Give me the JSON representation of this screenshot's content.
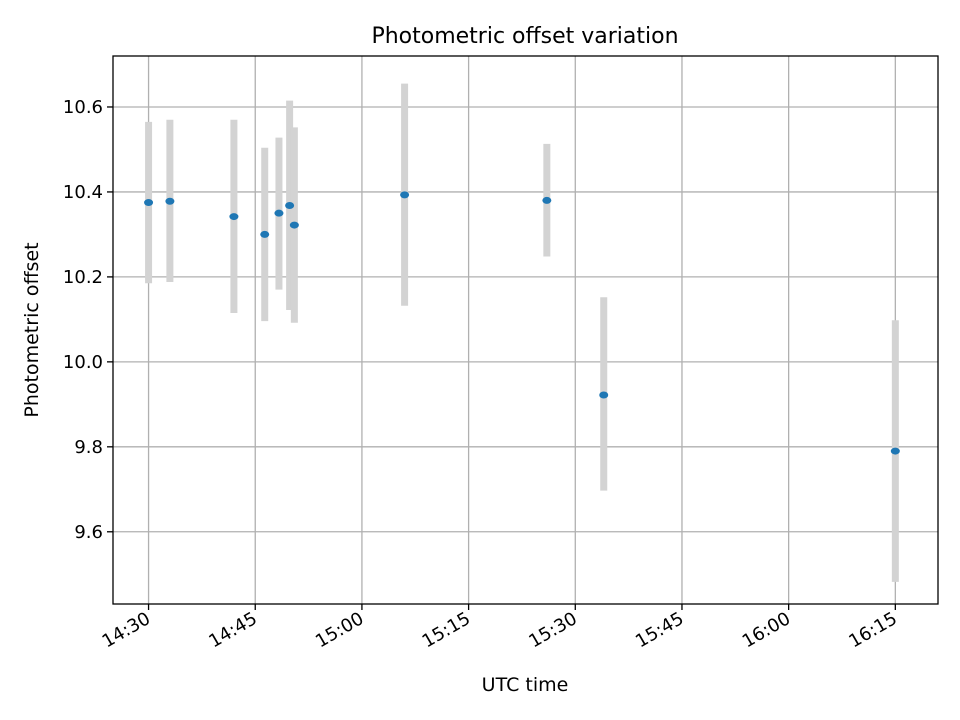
{
  "chart_data": {
    "type": "scatter",
    "title": "Photometric offset variation",
    "xlabel": "UTC time",
    "ylabel": "Photometric offset",
    "x_unit": "time HH:MM",
    "x_ticks": [
      "14:30",
      "14:45",
      "15:00",
      "15:15",
      "15:30",
      "15:45",
      "16:00",
      "16:15"
    ],
    "y_ticks": [
      "9.6",
      "9.8",
      "10.0",
      "10.2",
      "10.4",
      "10.6"
    ],
    "xlim": [
      "14:25",
      "16:21"
    ],
    "ylim": [
      9.43,
      10.72
    ],
    "grid": true,
    "marker_color": "#1f77b4",
    "errorbar_color": "#d3d3d3",
    "points": [
      {
        "x": "14:30",
        "y": 10.375,
        "yerr_low": 10.185,
        "yerr_high": 10.565
      },
      {
        "x": "14:33",
        "y": 10.378,
        "yerr_low": 10.188,
        "yerr_high": 10.57
      },
      {
        "x": "14:42",
        "y": 10.342,
        "yerr_low": 10.115,
        "yerr_high": 10.57
      },
      {
        "x": "14:46:20",
        "y": 10.3,
        "yerr_low": 10.096,
        "yerr_high": 10.504
      },
      {
        "x": "14:48:20",
        "y": 10.35,
        "yerr_low": 10.17,
        "yerr_high": 10.528
      },
      {
        "x": "14:49:50",
        "y": 10.368,
        "yerr_low": 10.122,
        "yerr_high": 10.615
      },
      {
        "x": "14:50:30",
        "y": 10.322,
        "yerr_low": 10.092,
        "yerr_high": 10.552
      },
      {
        "x": "15:06",
        "y": 10.393,
        "yerr_low": 10.132,
        "yerr_high": 10.655
      },
      {
        "x": "15:26",
        "y": 10.38,
        "yerr_low": 10.248,
        "yerr_high": 10.513
      },
      {
        "x": "15:34",
        "y": 9.922,
        "yerr_low": 9.697,
        "yerr_high": 10.152
      },
      {
        "x": "16:15",
        "y": 9.79,
        "yerr_low": 9.482,
        "yerr_high": 10.098
      }
    ]
  }
}
